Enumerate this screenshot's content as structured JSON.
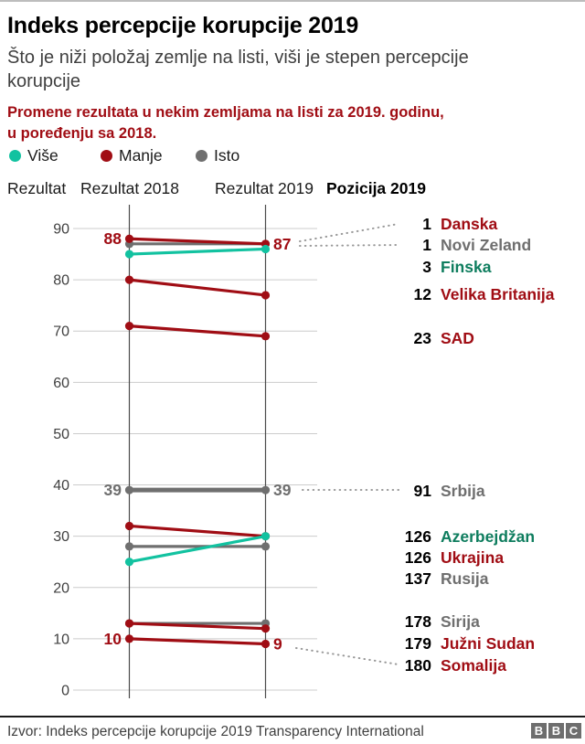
{
  "header": {
    "title": "Indeks percepcije korupcije 2019",
    "subtitle": "Što je niži položaj zemlje na listi, viši je stepen percepcije korupcije",
    "intro": "Promene rezultata u nekim zemljama na listi za 2019. godinu,\nu poređenju sa 2018."
  },
  "legend": [
    {
      "label": "Više",
      "type": "vise"
    },
    {
      "label": "Manje",
      "type": "manje"
    },
    {
      "label": "Isto",
      "type": "isto"
    }
  ],
  "columns": {
    "score": "Rezultat",
    "score2018": "Rezultat 2018",
    "score2019": "Rezultat 2019",
    "position2019": "Pozicija 2019"
  },
  "colors": {
    "vise": "#12c2a0",
    "manje": "#a00d14",
    "isto": "#6f6f6f",
    "vise_label": "#0e7d5e",
    "grid": "#cccccc",
    "axis": "#4a4a4a",
    "tick": "#404040",
    "leader": "#999999"
  },
  "chart_data": {
    "type": "slope",
    "title": "Indeks percepcije korupcije 2019",
    "yticks": [
      0,
      10,
      20,
      30,
      40,
      50,
      60,
      70,
      80,
      90
    ],
    "ylim": [
      0,
      92
    ],
    "columns": [
      "Rezultat 2018",
      "Rezultat 2019"
    ],
    "legend_position": "top-left",
    "grid": true,
    "series": [
      {
        "name": "Danska",
        "rank": "1",
        "v2018": 88,
        "v2019": 87,
        "change": "manje",
        "label2018": "88",
        "label2019": "87",
        "label_y": 243,
        "leader": [
          328,
          262,
          436,
          243
        ]
      },
      {
        "name": "Novi Zeland",
        "rank": "1",
        "v2018": 87,
        "v2019": 87,
        "change": "isto",
        "label_y": 266,
        "leader": [
          328,
          267,
          436,
          266
        ]
      },
      {
        "name": "Finska",
        "rank": "3",
        "v2018": 85,
        "v2019": 86,
        "change": "vise",
        "label_y": 290
      },
      {
        "name": "Velika Britanija",
        "rank": "12",
        "v2018": 80,
        "v2019": 77,
        "change": "manje",
        "label_y": 320
      },
      {
        "name": "SAD",
        "rank": "23",
        "v2018": 71,
        "v2019": 69,
        "change": "manje",
        "label_y": 368
      },
      {
        "name": "Srbija",
        "rank": "91",
        "v2018": 39,
        "v2019": 39,
        "change": "isto",
        "label2018": "39",
        "label2019": "39",
        "label_y": 535,
        "thick": true,
        "leader": [
          331,
          534,
          436,
          534
        ]
      },
      {
        "name": "Azerbejdžan",
        "rank": "126",
        "v2018": 25,
        "v2019": 30,
        "change": "vise",
        "label_y": 585
      },
      {
        "name": "Ukrajina",
        "rank": "126",
        "v2018": 32,
        "v2019": 30,
        "change": "manje",
        "label_y": 608
      },
      {
        "name": "Rusija",
        "rank": "137",
        "v2018": 28,
        "v2019": 28,
        "change": "isto",
        "label_y": 631
      },
      {
        "name": "Sirija",
        "rank": "178",
        "v2018": 13,
        "v2019": 13,
        "change": "isto",
        "label_y": 678
      },
      {
        "name": "Južni Sudan",
        "rank": "179",
        "v2018": 13,
        "v2019": 12,
        "change": "manje",
        "label_y": 702
      },
      {
        "name": "Somalija",
        "rank": "180",
        "v2018": 10,
        "v2019": 9,
        "change": "manje",
        "label2018": "10",
        "label2019": "9",
        "label_y": 726,
        "leader": [
          324,
          707,
          436,
          725
        ]
      }
    ]
  },
  "footer": {
    "source": "Izvor: Indeks percepcije korupcije 2019 Transparency International",
    "bbc": [
      "B",
      "B",
      "C"
    ]
  }
}
